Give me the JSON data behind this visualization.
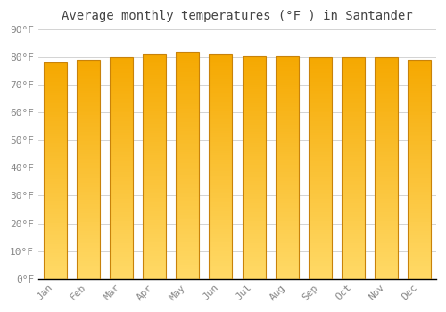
{
  "title": "Average monthly temperatures (°F ) in Santander",
  "months": [
    "Jan",
    "Feb",
    "Mar",
    "Apr",
    "May",
    "Jun",
    "Jul",
    "Aug",
    "Sep",
    "Oct",
    "Nov",
    "Dec"
  ],
  "values": [
    78,
    79,
    80,
    81,
    82,
    81,
    80.5,
    80.5,
    80,
    80,
    80,
    79
  ],
  "bar_color_top": "#F5A800",
  "bar_color_bottom": "#FFD966",
  "bar_edge_color": "#C8820A",
  "ylim": [
    0,
    90
  ],
  "ytick_step": 10,
  "background_color": "#FFFFFF",
  "plot_bg_color": "#FFFFFF",
  "grid_color": "#CCCCCC",
  "title_fontsize": 10,
  "tick_fontsize": 8,
  "font_family": "monospace",
  "bar_width": 0.7
}
